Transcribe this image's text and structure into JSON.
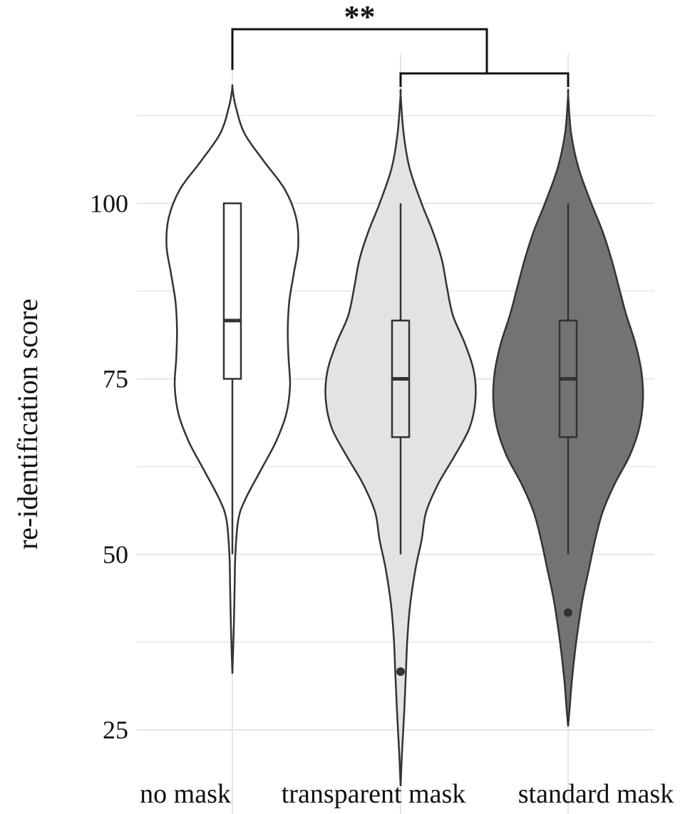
{
  "chart_data": {
    "type": "violin",
    "ylabel": "re-identification score",
    "xlabel": "",
    "ylim": [
      19,
      117
    ],
    "y_ticks": [
      25,
      50,
      75,
      100
    ],
    "y_minor_gridlines": [
      37.5,
      62.5,
      87.5,
      112.5
    ],
    "grid": true,
    "categories": [
      "no mask",
      "transparent mask",
      "standard mask"
    ],
    "colors": {
      "no mask": "#ffffff",
      "transparent mask": "#e3e3e3",
      "standard mask": "#737373",
      "outline": "#333333",
      "grid": "#e6e6e6"
    },
    "series": [
      {
        "name": "no mask",
        "box": {
          "lower_whisker": 50,
          "q1": 75,
          "median": 83.3,
          "q3": 100,
          "upper_whisker": 100
        },
        "outliers": [],
        "violin_range": [
          33,
          116.5
        ],
        "violin_density": [
          [
            33,
            0.0
          ],
          [
            40,
            0.02
          ],
          [
            45,
            0.03
          ],
          [
            50,
            0.04
          ],
          [
            55,
            0.08
          ],
          [
            58,
            0.18
          ],
          [
            62,
            0.38
          ],
          [
            66,
            0.58
          ],
          [
            70,
            0.72
          ],
          [
            74,
            0.77
          ],
          [
            78,
            0.75
          ],
          [
            82,
            0.74
          ],
          [
            86,
            0.76
          ],
          [
            90,
            0.82
          ],
          [
            94,
            0.88
          ],
          [
            98,
            0.85
          ],
          [
            102,
            0.7
          ],
          [
            106,
            0.42
          ],
          [
            110,
            0.16
          ],
          [
            114,
            0.04
          ],
          [
            116.5,
            0.0
          ]
        ]
      },
      {
        "name": "transparent mask",
        "box": {
          "lower_whisker": 50,
          "q1": 66.7,
          "median": 75,
          "q3": 83.3,
          "upper_whisker": 100
        },
        "outliers": [
          33.3
        ],
        "violin_range": [
          17,
          115.5
        ],
        "violin_density": [
          [
            17,
            0.0
          ],
          [
            22,
            0.02
          ],
          [
            28,
            0.05
          ],
          [
            33,
            0.07
          ],
          [
            38,
            0.09
          ],
          [
            43,
            0.13
          ],
          [
            48,
            0.2
          ],
          [
            52,
            0.28
          ],
          [
            56,
            0.34
          ],
          [
            60,
            0.5
          ],
          [
            64,
            0.72
          ],
          [
            68,
            0.92
          ],
          [
            72,
            1.0
          ],
          [
            76,
            0.98
          ],
          [
            80,
            0.86
          ],
          [
            84,
            0.7
          ],
          [
            88,
            0.62
          ],
          [
            92,
            0.55
          ],
          [
            96,
            0.43
          ],
          [
            100,
            0.28
          ],
          [
            105,
            0.12
          ],
          [
            110,
            0.04
          ],
          [
            115.5,
            0.0
          ]
        ]
      },
      {
        "name": "standard mask",
        "box": {
          "lower_whisker": 50,
          "q1": 66.7,
          "median": 75,
          "q3": 83.3,
          "upper_whisker": 100
        },
        "outliers": [
          41.7
        ],
        "violin_range": [
          25.5,
          115.5
        ],
        "violin_density": [
          [
            25.5,
            0.0
          ],
          [
            28,
            0.02
          ],
          [
            32,
            0.05
          ],
          [
            36,
            0.09
          ],
          [
            40,
            0.14
          ],
          [
            44,
            0.2
          ],
          [
            48,
            0.28
          ],
          [
            52,
            0.36
          ],
          [
            56,
            0.46
          ],
          [
            60,
            0.62
          ],
          [
            64,
            0.82
          ],
          [
            68,
            0.95
          ],
          [
            72,
            1.0
          ],
          [
            76,
            0.98
          ],
          [
            80,
            0.9
          ],
          [
            84,
            0.78
          ],
          [
            88,
            0.68
          ],
          [
            92,
            0.58
          ],
          [
            96,
            0.46
          ],
          [
            100,
            0.31
          ],
          [
            105,
            0.14
          ],
          [
            110,
            0.04
          ],
          [
            115.5,
            0.0
          ]
        ]
      }
    ],
    "annotations": [
      {
        "type": "significance-bracket",
        "label": "**",
        "left_group": "no mask",
        "right_group": [
          "transparent mask",
          "standard mask"
        ]
      }
    ]
  }
}
